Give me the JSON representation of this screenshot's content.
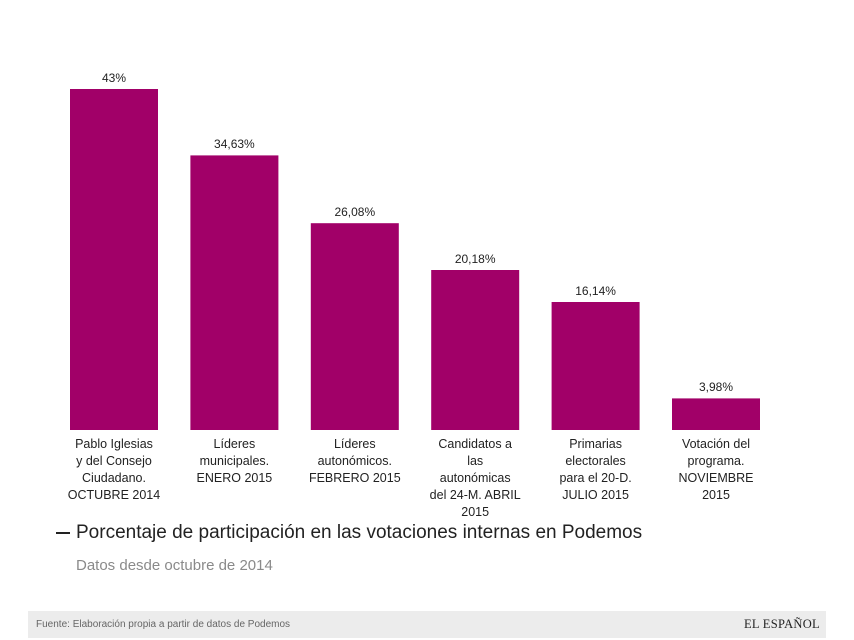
{
  "chart_data": {
    "type": "bar",
    "title": "Porcentaje de participación en las votaciones internas en Podemos",
    "subtitle": "Datos desde octubre de 2014",
    "categories": [
      [
        "Pablo Iglesias",
        "y del Consejo",
        "Ciudadano.",
        "OCTUBRE 2014"
      ],
      [
        "Líderes",
        "municipales.",
        "ENERO 2015"
      ],
      [
        "Líderes",
        "autonómicos.",
        "FEBRERO 2015"
      ],
      [
        "Candidatos a",
        "las",
        "autonómicas",
        "del 24-M. ABRIL",
        "2015"
      ],
      [
        "Primarias",
        "electorales",
        "para el 20-D.",
        "JULIO 2015"
      ],
      [
        "Votación del",
        "programa.",
        "NOVIEMBRE",
        "2015"
      ]
    ],
    "values": [
      43,
      34.63,
      26.08,
      20.18,
      16.14,
      3.98
    ],
    "value_labels": [
      "43%",
      "34,63%",
      "26,08%",
      "20,18%",
      "16,14%",
      "3,98%"
    ],
    "xlabel": "",
    "ylabel": "",
    "ylim": [
      0,
      43
    ],
    "grid": false,
    "bar_color": "#a10068"
  },
  "footer": {
    "source": "Fuente: Elaboración propia a partir de datos de Podemos",
    "brand": "EL ESPAÑOL"
  }
}
